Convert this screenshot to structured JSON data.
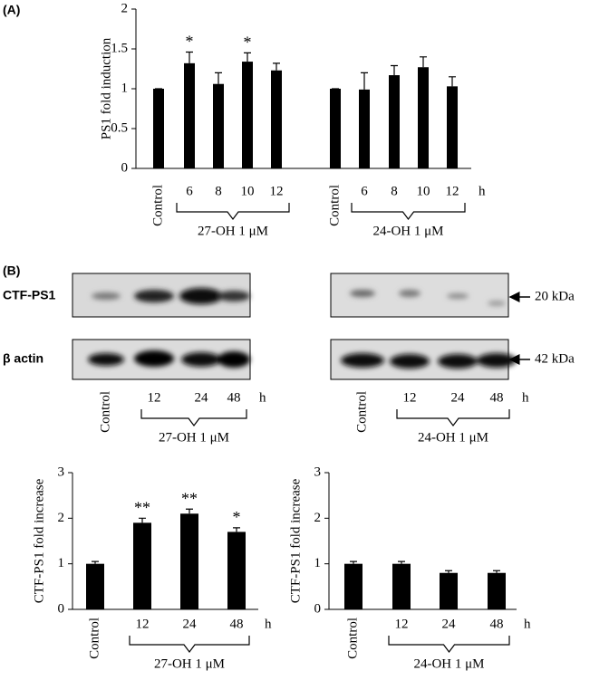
{
  "panel_labels": [
    "(A)",
    "(B)"
  ],
  "blots": {
    "rows": [
      "CTF-PS1",
      "β actin"
    ],
    "markers": [
      "20 kDa",
      "42 kDa"
    ],
    "unit": "h",
    "panels": [
      {
        "categories": [
          "Control",
          "12",
          "24",
          "48"
        ],
        "group": "27-OH 1 μM"
      },
      {
        "categories": [
          "Control",
          "12",
          "24",
          "48"
        ],
        "group": "24-OH 1 μM"
      }
    ]
  },
  "chart_data": [
    {
      "type": "bar",
      "y_label": "PS1 fold induction",
      "unit": "h",
      "categories": [
        "Control",
        "6",
        "8",
        "10",
        "12",
        null,
        "Control",
        "6",
        "8",
        "10",
        "12"
      ],
      "values": [
        1,
        1.32,
        1.06,
        1.34,
        1.23,
        null,
        1,
        0.99,
        1.17,
        1.27,
        1.03
      ],
      "errors": [
        0,
        0.14,
        0.14,
        0.11,
        0.09,
        null,
        0,
        0.21,
        0.12,
        0.13,
        0.12
      ],
      "significance": [
        null,
        "*",
        null,
        "*",
        null,
        null,
        null,
        null,
        null,
        null,
        null
      ],
      "groups": [
        "27-OH 1 μM",
        "24-OH 1 μM"
      ],
      "color": "#000000",
      "ylim": [
        0,
        2
      ],
      "yticks": [
        0,
        0.5,
        1,
        1.5,
        2
      ]
    },
    {
      "type": "bar",
      "y_label": "CTF-PS1 fold increase",
      "unit": "h",
      "categories": [
        "Control",
        "12",
        "24",
        "48"
      ],
      "values": [
        1,
        1.9,
        2.1,
        1.7
      ],
      "errors": [
        0.05,
        0.1,
        0.1,
        0.09
      ],
      "significance": [
        null,
        "**",
        "**",
        "*"
      ],
      "groups": [
        "27-OH 1 μM"
      ],
      "color": "#000000",
      "ylim": [
        0,
        3
      ],
      "yticks": [
        0,
        1,
        2,
        3
      ]
    },
    {
      "type": "bar",
      "y_label": "CTF-PS1 fold increase",
      "unit": "h",
      "categories": [
        "Control",
        "12",
        "24",
        "48"
      ],
      "values": [
        1,
        1,
        0.8,
        0.8
      ],
      "errors": [
        0.05,
        0.05,
        0.05,
        0.05
      ],
      "significance": [
        null,
        null,
        null,
        null
      ],
      "groups": [
        "24-OH 1 μM"
      ],
      "color": "#000000",
      "ylim": [
        0,
        3
      ],
      "yticks": [
        0,
        1,
        2,
        3
      ]
    }
  ]
}
